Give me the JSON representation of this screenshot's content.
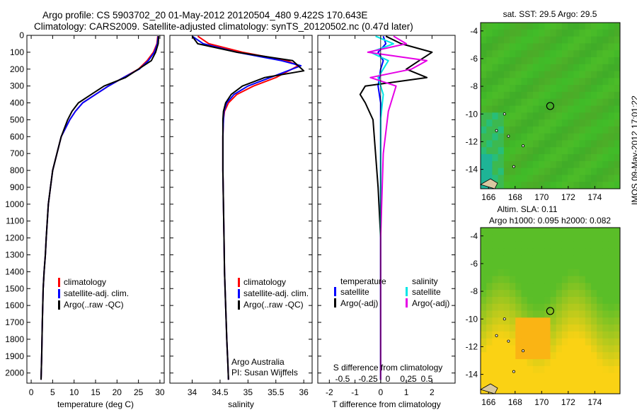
{
  "header": {
    "title_line1": "Argo profile: CS 5903702_20 01-May-2012 20120504_480 9.422S 170.643E",
    "title_line2": "Climatology: CARS2009. Satellite-adjusted climatology: synTS_20120502.nc (0.47d later)"
  },
  "colors": {
    "climatology": "#ff0000",
    "satellite_clim": "#0000ff",
    "argo": "#000000",
    "s_satellite": "#00e5e5",
    "s_argo": "#e500e5"
  },
  "maps": {
    "sst_title": "sat. SST: 29.5 Argo: 29.5",
    "sla_title_line1": "Altim. SLA: 0.11",
    "sla_title_line2": "Argo h1000: 0.095 h2000: 0.082",
    "x_ticks": [
      "166",
      "168",
      "170",
      "172",
      "174"
    ],
    "y_ticks": [
      "-4",
      "-6",
      "-8",
      "-10",
      "-12",
      "-14"
    ],
    "argo_location": {
      "lon": 170.643,
      "lat": -9.422
    }
  },
  "footer": {
    "stamp": "IMOS 09-May-2012 17:01:22"
  },
  "chart_data": [
    {
      "type": "line",
      "panel": "temperature",
      "xlabel": "temperature (deg C)",
      "xlim": [
        -1,
        31
      ],
      "ylim": [
        2060,
        0
      ],
      "x_ticks": [
        0,
        5,
        10,
        15,
        20,
        25,
        30
      ],
      "y_ticks": [
        0,
        100,
        200,
        300,
        400,
        500,
        600,
        700,
        800,
        900,
        1000,
        1100,
        1200,
        1300,
        1400,
        1500,
        1600,
        1700,
        1800,
        1900,
        2000
      ],
      "legend": [
        "climatology",
        "satellite-adj. clim.",
        "Argo(..raw -QC)"
      ],
      "series": [
        {
          "name": "climatology",
          "color": "#ff0000",
          "x": [
            29.5,
            29.3,
            28.5,
            27.0,
            25.0,
            21.5,
            18.0,
            15.0,
            12.0,
            10.3,
            9.0,
            7.0,
            6.0,
            5.0,
            4.5,
            4.0,
            3.5,
            3.3,
            3.0,
            2.8,
            2.6,
            2.45,
            2.3
          ],
          "y": [
            5,
            50,
            100,
            150,
            200,
            250,
            300,
            350,
            400,
            450,
            500,
            600,
            700,
            800,
            900,
            1000,
            1200,
            1300,
            1400,
            1500,
            1700,
            1900,
            2040
          ]
        },
        {
          "name": "satellite-adj. clim.",
          "color": "#0000ff",
          "x": [
            29.6,
            29.4,
            28.7,
            27.3,
            25.2,
            21.5,
            18.0,
            15.0,
            12.0,
            10.3,
            9.0,
            7.0,
            6.0,
            5.0,
            4.5,
            4.0,
            3.5,
            3.3,
            3.0,
            2.8,
            2.6,
            2.45,
            2.3
          ],
          "y": [
            5,
            50,
            100,
            150,
            200,
            250,
            300,
            350,
            400,
            450,
            500,
            600,
            700,
            800,
            900,
            1000,
            1200,
            1300,
            1400,
            1500,
            1700,
            1900,
            2040
          ]
        },
        {
          "name": "Argo(..raw -QC)",
          "color": "#000000",
          "x": [
            29.7,
            29.6,
            29.0,
            28.0,
            25.0,
            22.0,
            17.0,
            14.0,
            11.0,
            9.5,
            8.5,
            7.0,
            6.0,
            5.0,
            4.5,
            4.0,
            3.5,
            3.3,
            3.0,
            2.8,
            2.6,
            2.45,
            2.3
          ],
          "y": [
            5,
            50,
            100,
            150,
            200,
            250,
            300,
            350,
            400,
            450,
            500,
            600,
            700,
            800,
            900,
            1000,
            1200,
            1300,
            1400,
            1500,
            1700,
            1900,
            2040
          ]
        }
      ]
    },
    {
      "type": "line",
      "panel": "salinity",
      "xlabel": "salinity",
      "xlim": [
        33.6,
        36.15
      ],
      "ylim": [
        2060,
        0
      ],
      "x_ticks": [
        34,
        34.5,
        35,
        35.5,
        36
      ],
      "legend": [
        "climatology",
        "satellite-adj. clim.",
        "Argo(..raw -QC)"
      ],
      "annotation": [
        "Argo Australia",
        "PI: Susan Wijffels"
      ],
      "series": [
        {
          "name": "climatology",
          "color": "#ff0000",
          "x": [
            34.1,
            34.3,
            34.9,
            35.7,
            35.9,
            35.5,
            35.1,
            34.8,
            34.65,
            34.58,
            34.56,
            34.55,
            34.55,
            34.56,
            34.57,
            34.58,
            34.6,
            34.62,
            34.64,
            34.65
          ],
          "y": [
            5,
            50,
            100,
            150,
            180,
            250,
            300,
            350,
            400,
            450,
            500,
            600,
            800,
            1000,
            1200,
            1400,
            1600,
            1800,
            1950,
            2040
          ]
        },
        {
          "name": "satellite-adj. clim.",
          "color": "#0000ff",
          "x": [
            34.0,
            34.2,
            34.8,
            35.6,
            35.95,
            35.4,
            35.0,
            34.75,
            34.62,
            34.57,
            34.56,
            34.55,
            34.55,
            34.56,
            34.57,
            34.58,
            34.6,
            34.62,
            34.64,
            34.65
          ],
          "y": [
            5,
            50,
            100,
            150,
            180,
            250,
            300,
            350,
            400,
            450,
            500,
            600,
            800,
            1000,
            1200,
            1400,
            1600,
            1800,
            1950,
            2040
          ]
        },
        {
          "name": "Argo(..raw -QC)",
          "color": "#000000",
          "x": [
            34.0,
            34.1,
            34.8,
            35.8,
            36.0,
            35.3,
            34.9,
            34.7,
            34.6,
            34.56,
            34.55,
            34.55,
            34.55,
            34.56,
            34.57,
            34.58,
            34.6,
            34.62,
            34.64,
            34.65
          ],
          "y": [
            5,
            50,
            100,
            150,
            210,
            250,
            300,
            350,
            400,
            450,
            500,
            600,
            800,
            1000,
            1200,
            1400,
            1600,
            1800,
            1950,
            2040
          ]
        }
      ]
    },
    {
      "type": "line",
      "panel": "difference",
      "xlabel": "T difference from climatology",
      "xlabel_top": "S difference from climatology",
      "xlim": [
        -2.45,
        2.9
      ],
      "ylim": [
        2060,
        0
      ],
      "x_ticks": [
        -2,
        -1,
        0,
        1,
        2
      ],
      "s_ticks": [
        "-0.5",
        "-0.25",
        "0",
        "0.25",
        "0.5"
      ],
      "legend_groups": [
        "temperature",
        "salinity"
      ],
      "legend": [
        "satellite",
        "Argo(-adj)",
        "satellite",
        "Argo(-adj)"
      ],
      "series": [
        {
          "name": "T satellite",
          "color": "#0000ff",
          "x": [
            0.1,
            0.2,
            -0.1,
            0.1,
            0.0,
            -0.1,
            0.0,
            0.0,
            0.0,
            0.0,
            0.0,
            0.0
          ],
          "y": [
            5,
            50,
            100,
            150,
            200,
            300,
            400,
            600,
            800,
            1200,
            1600,
            2040
          ]
        },
        {
          "name": "T Argo(-adj)",
          "color": "#000000",
          "x": [
            0.2,
            0.8,
            2.0,
            1.5,
            1.0,
            1.8,
            -0.6,
            -0.8,
            -0.6,
            -0.3,
            -0.2,
            -0.1,
            0.0,
            0.0,
            0.0
          ],
          "y": [
            5,
            50,
            100,
            150,
            200,
            250,
            300,
            350,
            400,
            500,
            700,
            900,
            1200,
            1600,
            2040
          ]
        },
        {
          "name": "S satellite",
          "color": "#00e5e5",
          "x": [
            -0.2,
            0.5,
            -0.4,
            0.3,
            -0.1,
            0.1,
            0.0,
            0.0,
            0.0,
            0.0,
            0.0
          ],
          "y": [
            5,
            50,
            100,
            150,
            250,
            350,
            500,
            800,
            1200,
            1600,
            2040
          ]
        },
        {
          "name": "S Argo(-adj)",
          "color": "#e500e5",
          "x": [
            0.5,
            1.0,
            -0.5,
            1.8,
            1.2,
            -0.4,
            0.6,
            0.3,
            0.1,
            0.0,
            0.0
          ],
          "y": [
            5,
            50,
            100,
            150,
            200,
            250,
            300,
            450,
            700,
            1200,
            2040
          ]
        }
      ]
    }
  ]
}
